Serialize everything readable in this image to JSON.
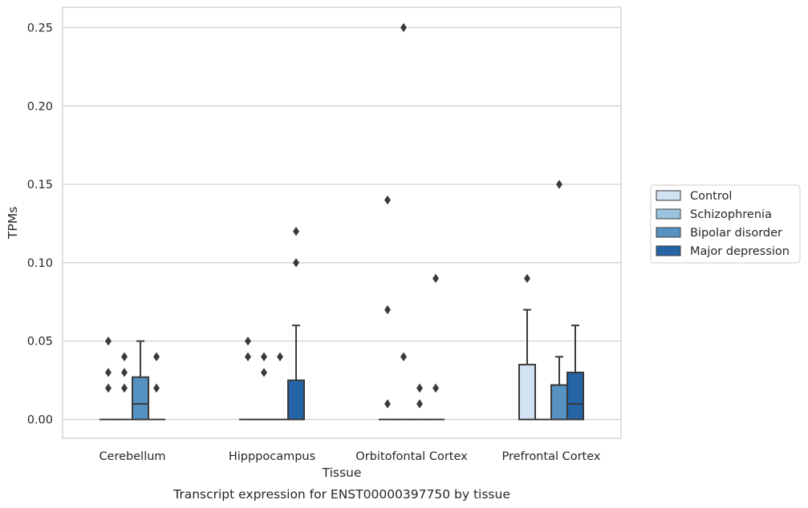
{
  "chart_data": {
    "type": "box",
    "ylabel": "TPMs",
    "xlabel": "Tissue",
    "caption": "Transcript expression for ENST00000397750 by tissue",
    "ylim": [
      -0.012,
      0.263
    ],
    "yticks": [
      "0.00",
      "0.05",
      "0.10",
      "0.15",
      "0.20",
      "0.25"
    ],
    "grid": true,
    "legend_position": "right",
    "categories": [
      "Cerebellum",
      "Hipppocampus",
      "Orbitofontal Cortex",
      "Prefrontal Cortex"
    ],
    "series": [
      {
        "name": "Control",
        "color": "#d1e2f2",
        "boxes": [
          {
            "q1": 0,
            "median": 0,
            "q3": 0,
            "whislo": 0,
            "whishi": 0,
            "fliers": [
              0.02,
              0.03,
              0.05
            ]
          },
          {
            "q1": 0,
            "median": 0,
            "q3": 0,
            "whislo": 0,
            "whishi": 0,
            "fliers": [
              0.04,
              0.05
            ]
          },
          {
            "q1": 0,
            "median": 0,
            "q3": 0,
            "whislo": 0,
            "whishi": 0,
            "fliers": [
              0.01,
              0.07,
              0.14
            ]
          },
          {
            "q1": 0,
            "median": 0,
            "q3": 0.035,
            "whislo": 0,
            "whishi": 0.07,
            "fliers": [
              0.09
            ]
          }
        ]
      },
      {
        "name": "Schizophrenia",
        "color": "#9bc5df",
        "boxes": [
          {
            "q1": 0,
            "median": 0,
            "q3": 0,
            "whislo": 0,
            "whishi": 0,
            "fliers": [
              0.02,
              0.03,
              0.04
            ]
          },
          {
            "q1": 0,
            "median": 0,
            "q3": 0,
            "whislo": 0,
            "whishi": 0,
            "fliers": [
              0.03,
              0.04
            ]
          },
          {
            "q1": 0,
            "median": 0,
            "q3": 0,
            "whislo": 0,
            "whishi": 0,
            "fliers": [
              0.04,
              0.25
            ]
          },
          {
            "q1": 0,
            "median": 0,
            "q3": 0,
            "whislo": 0,
            "whishi": 0,
            "fliers": []
          }
        ]
      },
      {
        "name": "Bipolar disorder",
        "color": "#5591c1",
        "boxes": [
          {
            "q1": 0,
            "median": 0.01,
            "q3": 0.027,
            "whislo": 0,
            "whishi": 0.05,
            "fliers": []
          },
          {
            "q1": 0,
            "median": 0,
            "q3": 0,
            "whislo": 0,
            "whishi": 0,
            "fliers": [
              0.04
            ]
          },
          {
            "q1": 0,
            "median": 0,
            "q3": 0,
            "whislo": 0,
            "whishi": 0,
            "fliers": [
              0.01,
              0.02
            ]
          },
          {
            "q1": 0,
            "median": 0,
            "q3": 0.022,
            "whislo": 0,
            "whishi": 0.04,
            "fliers": [
              0.15
            ]
          }
        ]
      },
      {
        "name": "Major depression",
        "color": "#2564a6",
        "boxes": [
          {
            "q1": 0,
            "median": 0,
            "q3": 0,
            "whislo": 0,
            "whishi": 0,
            "fliers": [
              0.02,
              0.04
            ]
          },
          {
            "q1": 0,
            "median": 0,
            "q3": 0.025,
            "whislo": 0,
            "whishi": 0.06,
            "fliers": [
              0.1,
              0.12
            ]
          },
          {
            "q1": 0,
            "median": 0,
            "q3": 0,
            "whislo": 0,
            "whishi": 0,
            "fliers": [
              0.02,
              0.09
            ]
          },
          {
            "q1": 0,
            "median": 0.01,
            "q3": 0.03,
            "whislo": 0,
            "whishi": 0.06,
            "fliers": []
          }
        ]
      }
    ]
  }
}
